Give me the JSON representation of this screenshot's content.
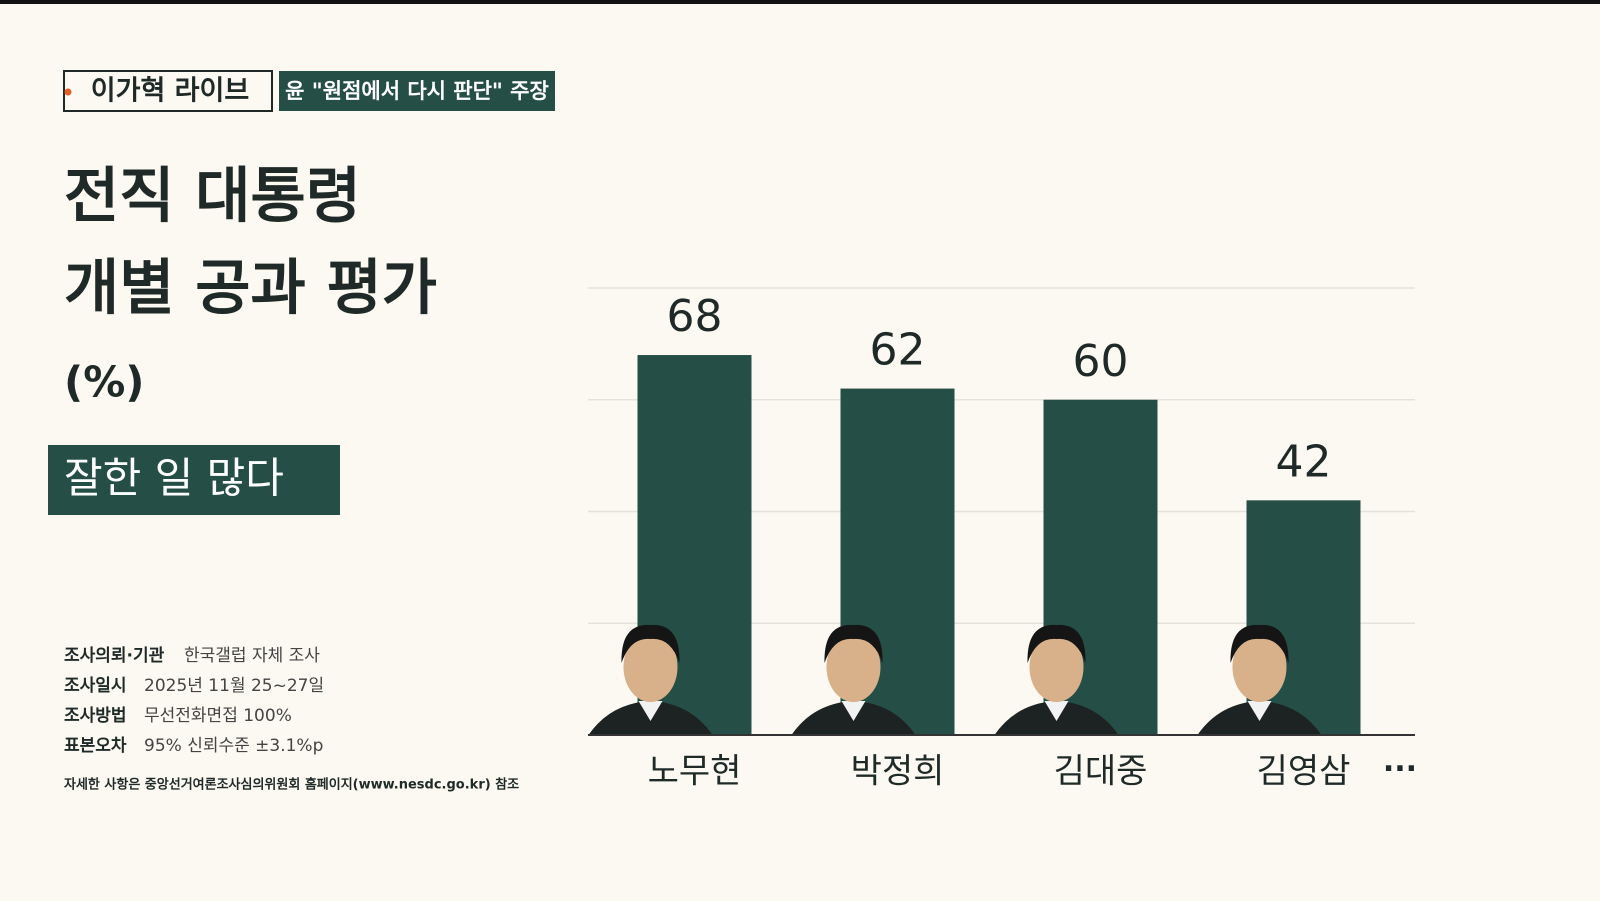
{
  "header": {
    "logo": "이가혁 라이브",
    "headline": "윤 \"원점에서 다시 판단\" 주장"
  },
  "chart_data": {
    "type": "bar",
    "title_lines": [
      "전직 대통령",
      "개별 공과 평가"
    ],
    "unit_label": "(%)",
    "series_label": "잘한 일 많다",
    "categories": [
      "노무현",
      "박정희",
      "김대중",
      "김영삼"
    ],
    "values": [
      68,
      62,
      60,
      42
    ],
    "more": "···",
    "color": "#254e47",
    "ylim": [
      0,
      80
    ],
    "yticks": [
      0,
      20,
      40,
      60,
      80
    ],
    "grid": true
  },
  "survey": {
    "rows": [
      [
        "조사의뢰·기관",
        "한국갤럽 자체 조사"
      ],
      [
        "조사일시",
        "2025년 11월 25~27일"
      ],
      [
        "조사방법",
        "무선전화면접 100%"
      ],
      [
        "표본오차",
        "95% 신뢰수준 ±3.1%p"
      ]
    ],
    "note": "자세한 사항은 중앙선거여론조사심의위원회 홈페이지(www.nesdc.go.kr) 참조"
  }
}
